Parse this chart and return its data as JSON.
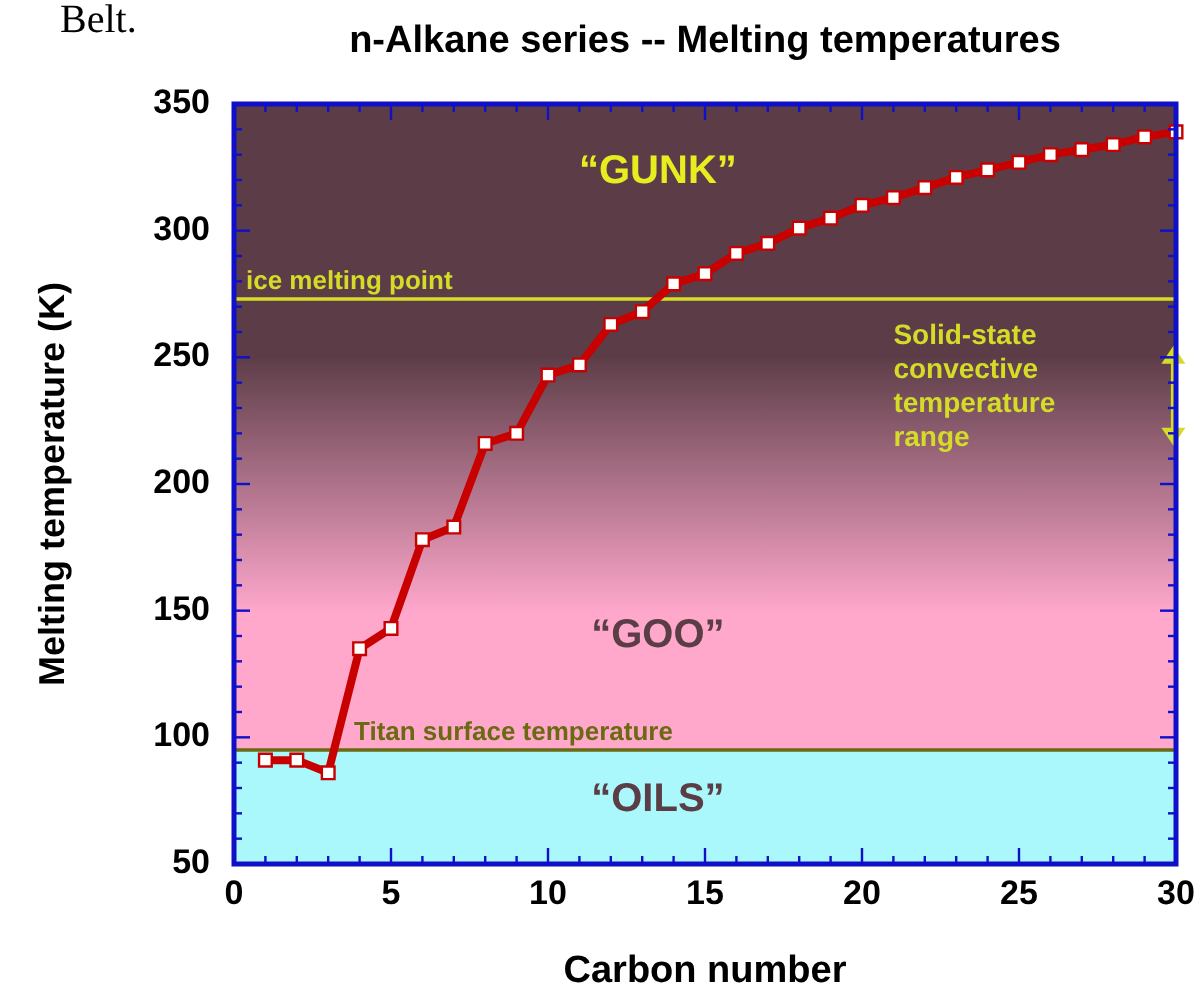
{
  "chart_data": {
    "type": "line",
    "title": "n-Alkane series -- Melting temperatures",
    "xlabel": "Carbon number",
    "ylabel": "Melting temperature (K)",
    "x": [
      1,
      2,
      3,
      4,
      5,
      6,
      7,
      8,
      9,
      10,
      11,
      12,
      13,
      14,
      15,
      16,
      17,
      18,
      19,
      20,
      21,
      22,
      23,
      24,
      25,
      26,
      27,
      28,
      29,
      30
    ],
    "series": [
      {
        "color": "#c80000",
        "values": [
          91,
          91,
          86,
          135,
          143,
          178,
          183,
          216,
          220,
          243,
          247,
          263,
          268,
          279,
          283,
          291,
          295,
          301,
          305,
          310,
          313,
          317,
          321,
          324,
          327,
          330,
          332,
          334,
          337,
          339
        ]
      }
    ],
    "xlim": [
      0,
      30
    ],
    "xticks": [
      0,
      5,
      10,
      15,
      20,
      25,
      30
    ],
    "ylim": [
      50,
      350
    ],
    "yticks": [
      50,
      100,
      150,
      200,
      250,
      300,
      350
    ],
    "marker": "square",
    "line_style": "solid",
    "grid": false,
    "bands": [
      {
        "axis": "y",
        "from": 50,
        "to": 95,
        "color": "#aaf8fc"
      },
      {
        "axis": "y",
        "from": 95,
        "to": 250,
        "color": "#ffa8cc"
      },
      {
        "axis": "y",
        "from": 250,
        "to": 350,
        "color": "#5c3d47"
      }
    ],
    "ref_lines": [
      {
        "axis": "y",
        "value": 273,
        "label": "ice melting point",
        "color": "#d4dc28"
      },
      {
        "axis": "y",
        "value": 95,
        "label": "Titan surface temperature",
        "color": "#6b6a12"
      }
    ],
    "annotations": [
      "Belt.",
      "“GUNK”",
      "“GOO”",
      "“OILS”",
      "Solid-state convective temperature range"
    ]
  }
}
